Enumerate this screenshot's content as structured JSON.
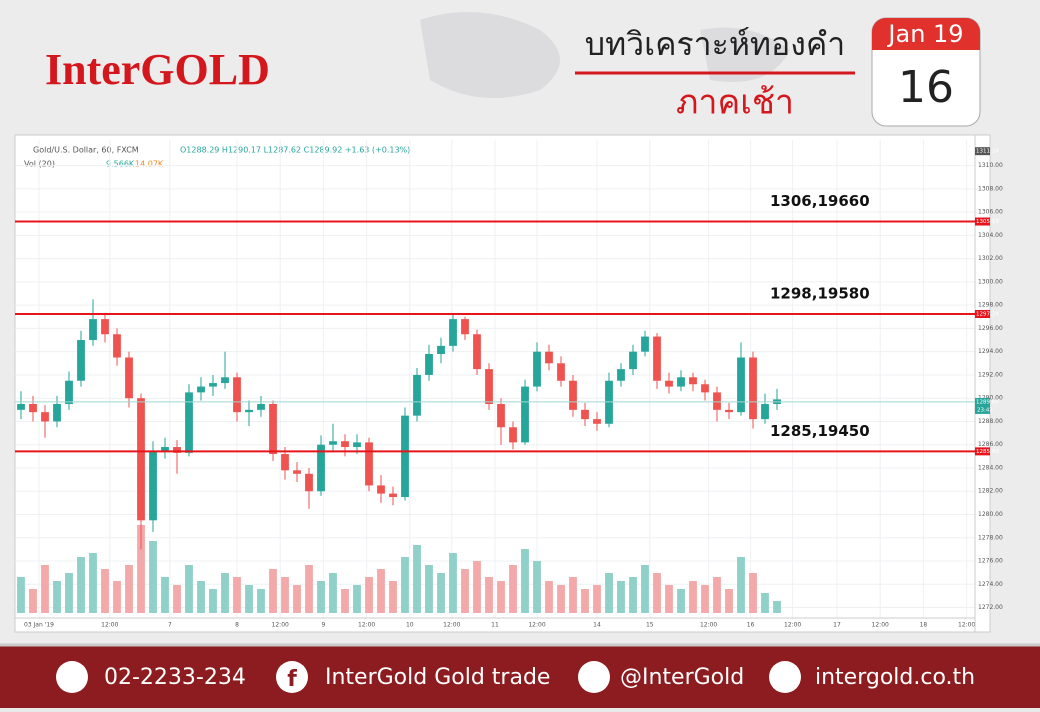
{
  "header": {
    "brand": "InterGOLD",
    "title": "บทวิเคราะห์ทองคำ",
    "subtitle": "ภาคเช้า",
    "month": "Jan 19",
    "day": "16"
  },
  "chart_data": {
    "type": "candlestick",
    "title": "Gold/U.S. Dollar, 60, FXCM",
    "ohlc_text": "O1288.29 H1290.17 L1287.62 C1289.92 +1.63 (+0.13%)",
    "volume_title": "Vol (20)",
    "volume_labels": [
      "9.566K",
      "14.07K"
    ],
    "up_color": "#26a69a",
    "down_color": "#ef5350",
    "volume_up_color": "#8fd0c8",
    "volume_down_color": "#f3a9a9",
    "open": [
      1289.0,
      1289.5,
      1288.8,
      1288.0,
      1289.5,
      1291.5,
      1295.0,
      1296.8,
      1295.5,
      1293.5,
      1290.0,
      1279.5,
      1285.5,
      1285.8,
      1285.3,
      1290.5,
      1291.0,
      1291.3,
      1291.8,
      1288.8,
      1289.0,
      1289.5,
      1285.2,
      1283.8,
      1283.5,
      1282.0,
      1286.0,
      1286.3,
      1285.8,
      1286.2,
      1282.5,
      1281.8,
      1281.5,
      1288.5,
      1292.0,
      1293.8,
      1294.5,
      1296.8,
      1295.5,
      1292.5,
      1289.5,
      1287.5,
      1286.2,
      1291.0,
      1294.0,
      1293.0,
      1291.5,
      1289.0,
      1288.2,
      1287.8,
      1291.5,
      1292.5,
      1294.0,
      1295.3,
      1291.5,
      1291.0,
      1291.8,
      1291.2,
      1290.5,
      1289.0,
      1288.8,
      1293.5,
      1288.2,
      1289.5
    ],
    "high": [
      1290.6,
      1290.2,
      1289.4,
      1290.2,
      1292.3,
      1295.8,
      1298.5,
      1297.2,
      1296.0,
      1294.0,
      1290.4,
      1286.3,
      1286.6,
      1286.4,
      1291.2,
      1291.8,
      1292.0,
      1294.0,
      1292.2,
      1289.8,
      1290.2,
      1289.8,
      1285.8,
      1284.5,
      1284.0,
      1286.8,
      1287.8,
      1286.9,
      1286.9,
      1286.6,
      1283.4,
      1282.4,
      1289.2,
      1292.6,
      1294.6,
      1295.2,
      1297.2,
      1297.0,
      1295.9,
      1293.0,
      1290.0,
      1288.0,
      1291.6,
      1294.8,
      1294.6,
      1293.6,
      1292.0,
      1289.6,
      1288.8,
      1292.2,
      1293.0,
      1294.6,
      1295.8,
      1295.6,
      1292.2,
      1292.4,
      1292.2,
      1291.6,
      1291.0,
      1289.6,
      1294.8,
      1294.0,
      1290.4,
      1290.8
    ],
    "low": [
      1288.2,
      1288.0,
      1286.6,
      1287.5,
      1289.0,
      1291.0,
      1294.5,
      1294.8,
      1292.8,
      1289.2,
      1277.0,
      1278.5,
      1284.8,
      1283.5,
      1285.0,
      1289.8,
      1290.2,
      1290.8,
      1288.0,
      1287.6,
      1288.4,
      1284.6,
      1283.0,
      1282.8,
      1280.5,
      1281.6,
      1285.4,
      1285.0,
      1285.2,
      1282.0,
      1281.0,
      1280.8,
      1281.2,
      1288.0,
      1291.5,
      1293.0,
      1294.0,
      1295.0,
      1292.0,
      1289.0,
      1286.0,
      1285.6,
      1286.0,
      1290.6,
      1292.4,
      1291.0,
      1288.4,
      1287.6,
      1287.2,
      1287.5,
      1291.0,
      1292.0,
      1293.6,
      1290.8,
      1290.4,
      1290.6,
      1290.6,
      1289.8,
      1288.0,
      1288.2,
      1288.5,
      1287.4,
      1287.8,
      1289.0
    ],
    "close": [
      1289.5,
      1288.8,
      1288.0,
      1289.5,
      1291.5,
      1295.0,
      1296.8,
      1295.5,
      1293.5,
      1290.0,
      1279.5,
      1285.5,
      1285.8,
      1285.3,
      1290.5,
      1291.0,
      1291.3,
      1291.8,
      1288.8,
      1289.0,
      1289.5,
      1285.2,
      1283.8,
      1283.5,
      1282.0,
      1286.0,
      1286.3,
      1285.8,
      1286.2,
      1282.5,
      1281.8,
      1281.5,
      1288.5,
      1292.0,
      1293.8,
      1294.5,
      1296.8,
      1295.5,
      1292.5,
      1289.5,
      1287.5,
      1286.2,
      1291.0,
      1294.0,
      1293.0,
      1291.5,
      1289.0,
      1288.2,
      1287.8,
      1291.5,
      1292.5,
      1294.0,
      1295.3,
      1291.5,
      1291.0,
      1291.8,
      1291.2,
      1290.5,
      1289.0,
      1288.8,
      1293.5,
      1288.2,
      1289.5,
      1289.9
    ],
    "volume": [
      9,
      6,
      12,
      8,
      10,
      14,
      15,
      11,
      8,
      12,
      22,
      18,
      9,
      7,
      12,
      8,
      6,
      10,
      9,
      7,
      6,
      11,
      9,
      7,
      12,
      8,
      10,
      6,
      7,
      9,
      11,
      8,
      14,
      17,
      12,
      10,
      15,
      11,
      13,
      9,
      8,
      12,
      16,
      13,
      8,
      7,
      9,
      6,
      7,
      10,
      8,
      9,
      12,
      10,
      7,
      6,
      8,
      7,
      9,
      6,
      14,
      10,
      5,
      3
    ],
    "ylim": [
      1270.5,
      1312.2
    ],
    "xlim": [
      -0.5,
      79.5
    ],
    "yticks": [
      {
        "value": 1272,
        "label": "1272.00"
      },
      {
        "value": 1274,
        "label": "1274.00"
      },
      {
        "value": 1276,
        "label": "1276.00"
      },
      {
        "value": 1278,
        "label": "1278.00"
      },
      {
        "value": 1280,
        "label": "1280.00"
      },
      {
        "value": 1282,
        "label": "1282.00"
      },
      {
        "value": 1284,
        "label": "1284.00"
      },
      {
        "value": 1286,
        "label": "1286.00"
      },
      {
        "value": 1288,
        "label": "1288.00"
      },
      {
        "value": 1290,
        "label": "1290.00"
      },
      {
        "value": 1292,
        "label": "1292.00"
      },
      {
        "value": 1294,
        "label": "1294.00"
      },
      {
        "value": 1296,
        "label": "1296.00"
      },
      {
        "value": 1298,
        "label": "1298.00"
      },
      {
        "value": 1300,
        "label": "1300.00"
      },
      {
        "value": 1302,
        "label": "1302.00"
      },
      {
        "value": 1304,
        "label": "1304.00"
      },
      {
        "value": 1306,
        "label": "1306.00"
      },
      {
        "value": 1308,
        "label": "1308.00"
      },
      {
        "value": 1310,
        "label": "1310.00"
      }
    ],
    "xticks": [
      {
        "value": 1.5,
        "label": "03 Jan '19"
      },
      {
        "value": 7.4,
        "label": "12:00"
      },
      {
        "value": 12.4,
        "label": "7"
      },
      {
        "value": 18,
        "label": "8"
      },
      {
        "value": 21.6,
        "label": "12:00"
      },
      {
        "value": 25.2,
        "label": "9"
      },
      {
        "value": 28.8,
        "label": "12:00"
      },
      {
        "value": 32.4,
        "label": "10"
      },
      {
        "value": 35.9,
        "label": "12:00"
      },
      {
        "value": 39.5,
        "label": "11"
      },
      {
        "value": 43,
        "label": "12:00"
      },
      {
        "value": 48,
        "label": "14"
      },
      {
        "value": 52.4,
        "label": "15"
      },
      {
        "value": 57.3,
        "label": "12:00"
      },
      {
        "value": 60.8,
        "label": "16"
      },
      {
        "value": 64.3,
        "label": "12:00"
      },
      {
        "value": 68,
        "label": "17"
      },
      {
        "value": 71.6,
        "label": "12:00"
      },
      {
        "value": 75.2,
        "label": "18"
      },
      {
        "value": 78.8,
        "label": "12:00"
      }
    ],
    "levels": [
      {
        "value": 1305.19,
        "note": "1306,19660"
      },
      {
        "value": 1297.24,
        "note": "1298,19580"
      },
      {
        "value": 1285.43,
        "note": "1285,19450"
      }
    ],
    "level_color": "#e8141b",
    "last_price": 1289.68,
    "countdown": "23:42",
    "top_marker": 1311.24,
    "grid": true
  },
  "footer": {
    "phone": "02-2233-234",
    "facebook": "InterGold Gold trade",
    "line": "@InterGold",
    "website": "intergold.co.th"
  }
}
